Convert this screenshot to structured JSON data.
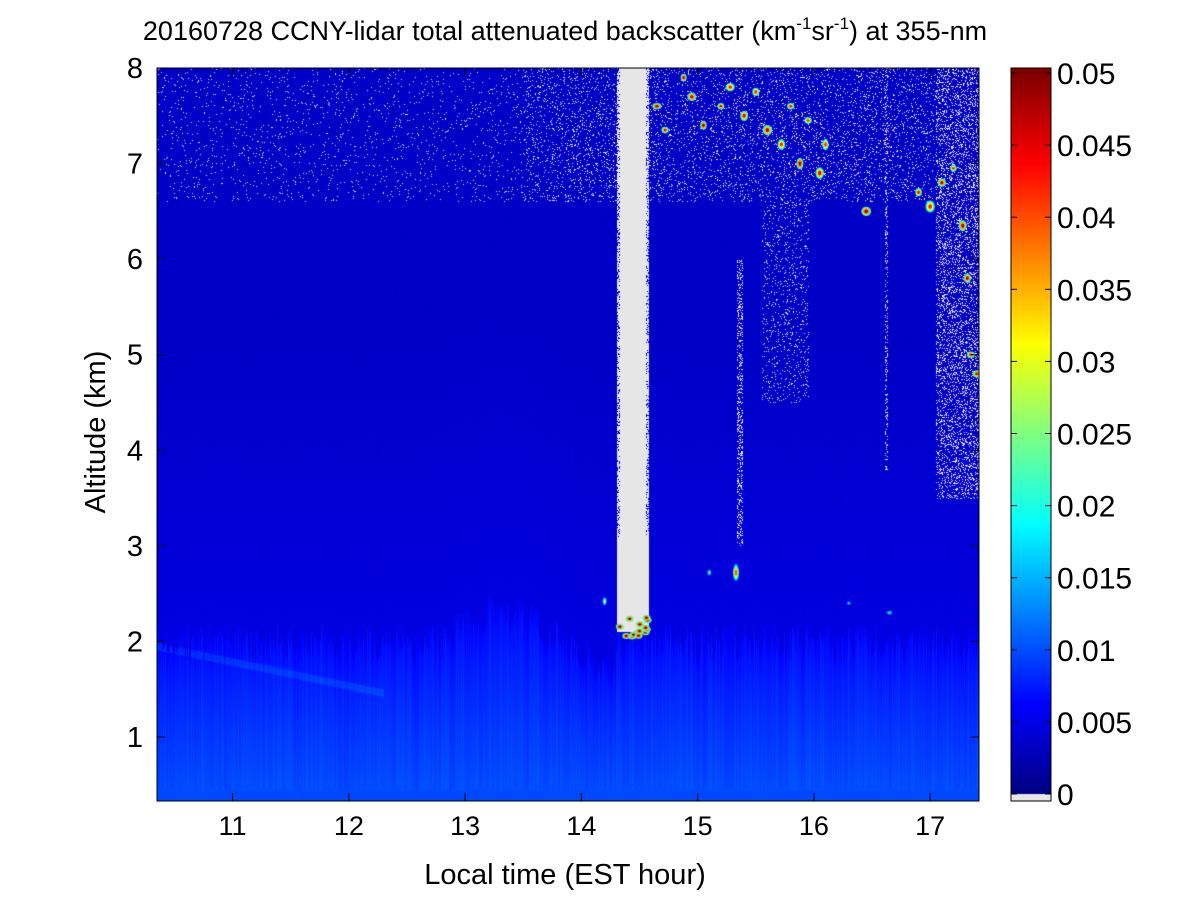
{
  "chart_data": {
    "type": "heatmap",
    "title": "20160728 CCNY-lidar total attenuated backscatter (km-1sr-1) at 355-nm",
    "title_parts": {
      "before": "20160728 CCNY-lidar total attenuated backscatter (km",
      "sup1": "-1",
      "middle": "sr",
      "sup2": "-1",
      "after": ") at 355-nm"
    },
    "xlabel": "Local time (EST hour)",
    "ylabel": "Altitude (km)",
    "xlim": [
      10.35,
      17.42
    ],
    "ylim": [
      0.33,
      8
    ],
    "xticks": [
      11,
      12,
      13,
      14,
      15,
      16,
      17
    ],
    "yticks": [
      1,
      2,
      3,
      4,
      5,
      6,
      7,
      8
    ],
    "colorbar": {
      "min": 0,
      "max": 0.05,
      "ticks": [
        0,
        0.005,
        0.01,
        0.015,
        0.02,
        0.025,
        0.03,
        0.035,
        0.04,
        0.045,
        0.05
      ],
      "colormap": "jet",
      "below_min_color": "#e6e6e6"
    },
    "colors": {
      "jet": [
        "#00008f",
        "#0000ff",
        "#00ffff",
        "#ffff00",
        "#ff0000",
        "#800000"
      ],
      "no_data": "#e6e6e6"
    },
    "features": [
      {
        "kind": "boundary_layer",
        "x": [
          10.35,
          17.42
        ],
        "top_km": 2.0,
        "value": 0.012
      },
      {
        "kind": "low_signal_column",
        "x": [
          14.3,
          14.58
        ],
        "altitude_km": [
          2.1,
          8
        ]
      },
      {
        "kind": "cloud_base",
        "x": [
          14.3,
          14.58
        ],
        "altitude_km": 2.1,
        "value": 0.05
      },
      {
        "kind": "cloud",
        "x": [
          15.3,
          15.36
        ],
        "altitude_km": 2.7,
        "value": 0.04
      },
      {
        "kind": "upper_clouds",
        "x": [
          14.6,
          17.42
        ],
        "altitude_km": [
          4.8,
          8
        ],
        "value": 0.045
      }
    ]
  }
}
